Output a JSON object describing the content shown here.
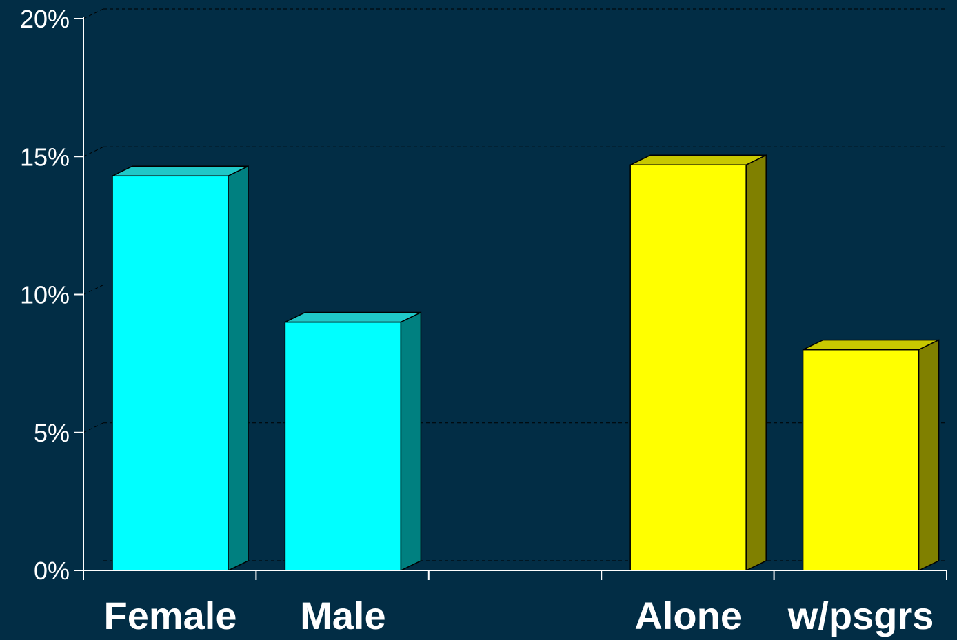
{
  "chart_data": {
    "type": "bar",
    "style": "3d-column",
    "categories": [
      "Female",
      "Male",
      "",
      "Alone",
      "w/psgrs"
    ],
    "values": [
      14.3,
      9.0,
      null,
      14.7,
      8.0
    ],
    "bar_colors": [
      "#00ffff",
      "#00ffff",
      null,
      "#ffff00",
      "#ffff00"
    ],
    "bar_side_colors": [
      "#008080",
      "#008080",
      null,
      "#808000",
      "#808000"
    ],
    "bar_top_colors": [
      "#20c8c8",
      "#20c8c8",
      null,
      "#c8c800",
      "#c8c800"
    ],
    "ylim": [
      0,
      20
    ],
    "yticks": [
      0,
      5,
      10,
      15,
      20
    ],
    "ytick_labels": [
      "0%",
      "5%",
      "10%",
      "15%",
      "20%"
    ],
    "title": "",
    "xlabel": "",
    "ylabel": "",
    "grid": true,
    "background_color": "#022d45",
    "axis_color": "#ffffff",
    "text_color": "#ffffff"
  }
}
